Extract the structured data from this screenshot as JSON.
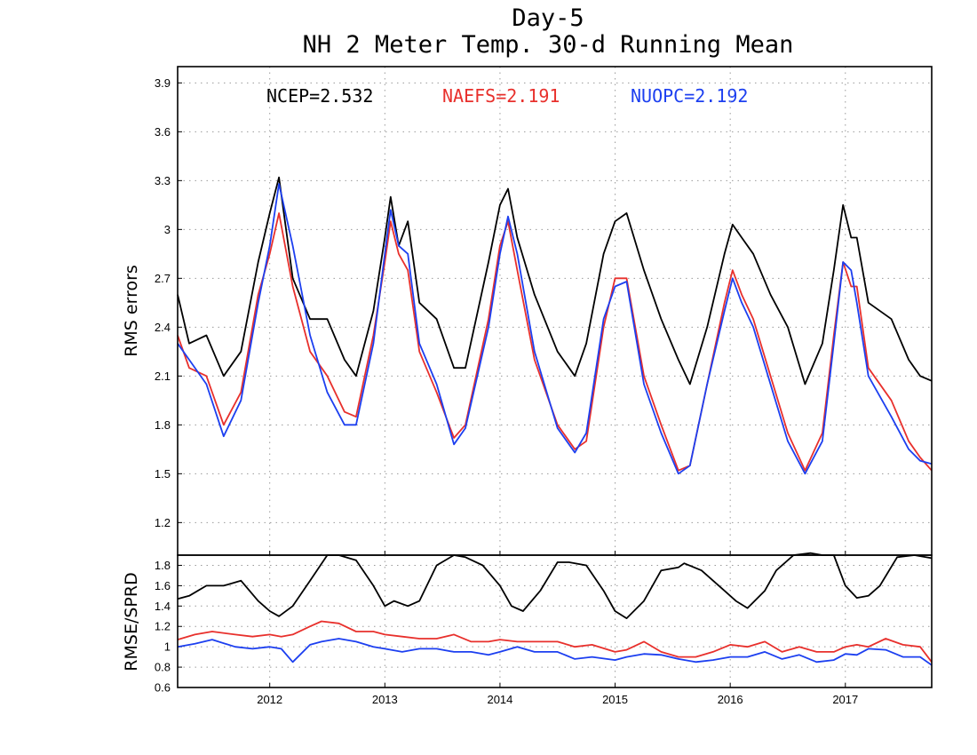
{
  "title_line1": "Day-5",
  "title_line2": "NH 2 Meter Temp. 30-d Running Mean",
  "stats": [
    {
      "label": "NCEP=2.532",
      "color": "#000000"
    },
    {
      "label": "NAEFS=2.191",
      "color": "#e8302c"
    },
    {
      "label": "NUOPC=2.192",
      "color": "#1c3ff0"
    }
  ],
  "chart_data": [
    {
      "type": "line",
      "ylabel": "RMS errors",
      "ylim": [
        1.0,
        4.0
      ],
      "yticks": [
        1.2,
        1.5,
        1.8,
        2.1,
        2.4,
        2.7,
        3.0,
        3.3,
        3.6,
        3.9
      ],
      "ytick_labels": [
        "1.2",
        "1.5",
        "1.8",
        "2.1",
        "2.4",
        "2.7",
        "3",
        "3.3",
        "3.6",
        "3.9"
      ],
      "xlim": [
        2011.2,
        2017.75
      ],
      "xticks": [
        2012,
        2013,
        2014,
        2015,
        2016,
        2017
      ],
      "xtick_labels": [
        "2012",
        "2013",
        "2014",
        "2015",
        "2016",
        "2017"
      ],
      "grid": true,
      "series": [
        {
          "name": "NCEP",
          "color": "#000000",
          "x": [
            2011.2,
            2011.3,
            2011.45,
            2011.6,
            2011.75,
            2011.9,
            2012.0,
            2012.08,
            2012.2,
            2012.35,
            2012.5,
            2012.65,
            2012.75,
            2012.9,
            2013.0,
            2013.05,
            2013.12,
            2013.2,
            2013.3,
            2013.45,
            2013.6,
            2013.7,
            2013.9,
            2014.0,
            2014.07,
            2014.15,
            2014.3,
            2014.5,
            2014.65,
            2014.75,
            2014.9,
            2015.0,
            2015.1,
            2015.25,
            2015.4,
            2015.55,
            2015.65,
            2015.8,
            2015.95,
            2016.02,
            2016.1,
            2016.2,
            2016.35,
            2016.5,
            2016.65,
            2016.8,
            2016.9,
            2016.98,
            2017.05,
            2017.1,
            2017.2,
            2017.4,
            2017.55,
            2017.65,
            2017.75
          ],
          "y": [
            2.6,
            2.3,
            2.35,
            2.1,
            2.25,
            2.8,
            3.1,
            3.32,
            2.7,
            2.45,
            2.45,
            2.2,
            2.1,
            2.5,
            2.95,
            3.2,
            2.9,
            3.05,
            2.55,
            2.45,
            2.15,
            2.15,
            2.8,
            3.15,
            3.25,
            2.95,
            2.6,
            2.25,
            2.1,
            2.3,
            2.85,
            3.05,
            3.1,
            2.75,
            2.45,
            2.2,
            2.05,
            2.4,
            2.85,
            3.03,
            2.95,
            2.85,
            2.6,
            2.4,
            2.05,
            2.3,
            2.75,
            3.15,
            2.95,
            2.95,
            2.55,
            2.45,
            2.2,
            2.1,
            2.07
          ]
        },
        {
          "name": "NAEFS",
          "color": "#e8302c",
          "x": [
            2011.2,
            2011.3,
            2011.45,
            2011.6,
            2011.75,
            2011.9,
            2012.0,
            2012.08,
            2012.2,
            2012.35,
            2012.5,
            2012.65,
            2012.75,
            2012.9,
            2013.0,
            2013.05,
            2013.12,
            2013.2,
            2013.3,
            2013.45,
            2013.6,
            2013.7,
            2013.9,
            2014.0,
            2014.07,
            2014.15,
            2014.3,
            2014.5,
            2014.65,
            2014.75,
            2014.9,
            2015.0,
            2015.1,
            2015.25,
            2015.4,
            2015.55,
            2015.65,
            2015.8,
            2015.95,
            2016.02,
            2016.1,
            2016.2,
            2016.35,
            2016.5,
            2016.65,
            2016.8,
            2016.9,
            2016.98,
            2017.05,
            2017.1,
            2017.2,
            2017.4,
            2017.55,
            2017.65,
            2017.75
          ],
          "y": [
            2.35,
            2.15,
            2.1,
            1.8,
            2.0,
            2.6,
            2.85,
            3.1,
            2.65,
            2.25,
            2.1,
            1.88,
            1.85,
            2.35,
            2.8,
            3.05,
            2.85,
            2.75,
            2.25,
            2.0,
            1.72,
            1.8,
            2.45,
            2.9,
            3.05,
            2.75,
            2.2,
            1.8,
            1.65,
            1.7,
            2.4,
            2.7,
            2.7,
            2.1,
            1.8,
            1.52,
            1.55,
            2.05,
            2.55,
            2.75,
            2.6,
            2.45,
            2.1,
            1.75,
            1.52,
            1.75,
            2.35,
            2.8,
            2.65,
            2.65,
            2.15,
            1.95,
            1.7,
            1.6,
            1.52
          ]
        },
        {
          "name": "NUOPC",
          "color": "#1c3ff0",
          "x": [
            2011.2,
            2011.3,
            2011.45,
            2011.6,
            2011.75,
            2011.9,
            2012.0,
            2012.08,
            2012.2,
            2012.35,
            2012.5,
            2012.65,
            2012.75,
            2012.9,
            2013.0,
            2013.05,
            2013.12,
            2013.2,
            2013.3,
            2013.45,
            2013.6,
            2013.7,
            2013.9,
            2014.0,
            2014.07,
            2014.15,
            2014.3,
            2014.5,
            2014.65,
            2014.75,
            2014.9,
            2015.0,
            2015.1,
            2015.25,
            2015.4,
            2015.55,
            2015.65,
            2015.8,
            2015.95,
            2016.02,
            2016.1,
            2016.2,
            2016.35,
            2016.5,
            2016.65,
            2016.8,
            2016.9,
            2016.98,
            2017.05,
            2017.1,
            2017.2,
            2017.4,
            2017.55,
            2017.65,
            2017.75
          ],
          "y": [
            2.3,
            2.2,
            2.05,
            1.73,
            1.95,
            2.55,
            2.9,
            3.28,
            2.9,
            2.35,
            2.0,
            1.8,
            1.8,
            2.3,
            2.85,
            3.12,
            2.9,
            2.85,
            2.3,
            2.05,
            1.68,
            1.78,
            2.4,
            2.85,
            3.08,
            2.85,
            2.25,
            1.78,
            1.63,
            1.75,
            2.45,
            2.65,
            2.68,
            2.05,
            1.75,
            1.5,
            1.55,
            2.05,
            2.5,
            2.7,
            2.55,
            2.4,
            2.05,
            1.7,
            1.5,
            1.7,
            2.3,
            2.8,
            2.75,
            2.55,
            2.1,
            1.85,
            1.65,
            1.58,
            1.56
          ]
        }
      ]
    },
    {
      "type": "line",
      "ylabel": "RMSE/SPRD",
      "ylim": [
        0.6,
        1.9
      ],
      "yticks": [
        0.6,
        0.8,
        1.0,
        1.2,
        1.4,
        1.6,
        1.8
      ],
      "ytick_labels": [
        "0.6",
        "0.8",
        "1",
        "1.2",
        "1.4",
        "1.6",
        "1.8"
      ],
      "xlim": [
        2011.2,
        2017.75
      ],
      "xticks": [
        2012,
        2013,
        2014,
        2015,
        2016,
        2017
      ],
      "xtick_labels": [
        "2012",
        "2013",
        "2014",
        "2015",
        "2016",
        "2017"
      ],
      "grid": true,
      "series": [
        {
          "name": "NCEP",
          "color": "#000000",
          "x": [
            2011.2,
            2011.3,
            2011.45,
            2011.6,
            2011.75,
            2011.9,
            2012.0,
            2012.08,
            2012.2,
            2012.35,
            2012.5,
            2012.6,
            2012.75,
            2012.9,
            2013.0,
            2013.08,
            2013.2,
            2013.3,
            2013.45,
            2013.6,
            2013.7,
            2013.85,
            2014.0,
            2014.1,
            2014.2,
            2014.35,
            2014.5,
            2014.6,
            2014.75,
            2014.9,
            2015.0,
            2015.1,
            2015.25,
            2015.4,
            2015.55,
            2015.6,
            2015.75,
            2015.95,
            2016.05,
            2016.15,
            2016.3,
            2016.4,
            2016.55,
            2016.7,
            2016.8,
            2016.9,
            2017.0,
            2017.1,
            2017.2,
            2017.3,
            2017.45,
            2017.6,
            2017.75
          ],
          "y": [
            1.47,
            1.5,
            1.6,
            1.6,
            1.65,
            1.45,
            1.35,
            1.3,
            1.4,
            1.65,
            1.9,
            1.9,
            1.85,
            1.6,
            1.4,
            1.45,
            1.4,
            1.45,
            1.8,
            1.9,
            1.88,
            1.8,
            1.6,
            1.4,
            1.35,
            1.55,
            1.83,
            1.83,
            1.8,
            1.55,
            1.35,
            1.28,
            1.45,
            1.75,
            1.78,
            1.82,
            1.75,
            1.55,
            1.45,
            1.38,
            1.55,
            1.75,
            1.9,
            1.92,
            1.9,
            1.9,
            1.6,
            1.48,
            1.5,
            1.6,
            1.88,
            1.9,
            1.87
          ]
        },
        {
          "name": "NAEFS",
          "color": "#e8302c",
          "x": [
            2011.2,
            2011.35,
            2011.5,
            2011.7,
            2011.85,
            2012.0,
            2012.1,
            2012.2,
            2012.35,
            2012.45,
            2012.6,
            2012.75,
            2012.9,
            2013.0,
            2013.15,
            2013.3,
            2013.45,
            2013.6,
            2013.75,
            2013.9,
            2014.0,
            2014.15,
            2014.3,
            2014.5,
            2014.65,
            2014.8,
            2015.0,
            2015.1,
            2015.25,
            2015.4,
            2015.55,
            2015.7,
            2015.85,
            2016.0,
            2016.15,
            2016.3,
            2016.45,
            2016.6,
            2016.75,
            2016.9,
            2017.0,
            2017.1,
            2017.2,
            2017.35,
            2017.5,
            2017.65,
            2017.75
          ],
          "y": [
            1.07,
            1.12,
            1.15,
            1.12,
            1.1,
            1.12,
            1.1,
            1.12,
            1.2,
            1.25,
            1.23,
            1.15,
            1.15,
            1.12,
            1.1,
            1.08,
            1.08,
            1.12,
            1.05,
            1.05,
            1.07,
            1.05,
            1.05,
            1.05,
            1.0,
            1.02,
            0.95,
            0.97,
            1.05,
            0.95,
            0.9,
            0.9,
            0.95,
            1.02,
            1.0,
            1.05,
            0.95,
            1.0,
            0.95,
            0.95,
            1.0,
            1.02,
            1.0,
            1.08,
            1.02,
            1.0,
            0.85
          ]
        },
        {
          "name": "NUOPC",
          "color": "#1c3ff0",
          "x": [
            2011.2,
            2011.35,
            2011.5,
            2011.7,
            2011.85,
            2012.0,
            2012.1,
            2012.2,
            2012.35,
            2012.45,
            2012.6,
            2012.75,
            2012.9,
            2013.0,
            2013.15,
            2013.3,
            2013.45,
            2013.6,
            2013.75,
            2013.9,
            2014.0,
            2014.15,
            2014.3,
            2014.5,
            2014.65,
            2014.8,
            2015.0,
            2015.1,
            2015.25,
            2015.4,
            2015.55,
            2015.7,
            2015.85,
            2016.0,
            2016.15,
            2016.3,
            2016.45,
            2016.6,
            2016.75,
            2016.9,
            2017.0,
            2017.1,
            2017.2,
            2017.35,
            2017.5,
            2017.65,
            2017.75
          ],
          "y": [
            1.0,
            1.03,
            1.07,
            1.0,
            0.98,
            1.0,
            0.98,
            0.85,
            1.02,
            1.05,
            1.08,
            1.05,
            1.0,
            0.98,
            0.95,
            0.98,
            0.98,
            0.95,
            0.95,
            0.92,
            0.95,
            1.0,
            0.95,
            0.95,
            0.88,
            0.9,
            0.87,
            0.9,
            0.93,
            0.92,
            0.88,
            0.85,
            0.87,
            0.9,
            0.9,
            0.95,
            0.88,
            0.92,
            0.85,
            0.87,
            0.93,
            0.92,
            0.98,
            0.97,
            0.9,
            0.9,
            0.82
          ]
        }
      ]
    }
  ]
}
